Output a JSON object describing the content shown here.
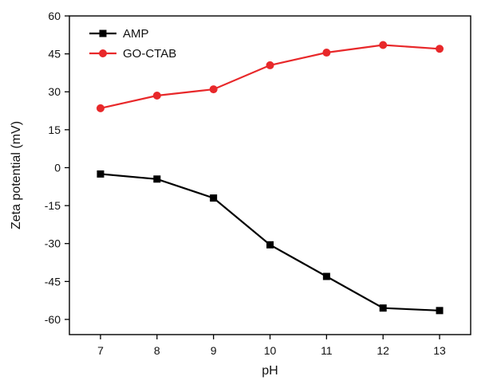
{
  "chart_data": {
    "type": "line",
    "xlabel": "pH",
    "ylabel": "Zeta potential (mV)",
    "x": [
      7,
      8,
      9,
      10,
      11,
      12,
      13
    ],
    "xlim": [
      6.45,
      13.55
    ],
    "ylim": [
      -66,
      60
    ],
    "yticks": [
      60,
      45,
      30,
      15,
      0,
      -15,
      -30,
      -45,
      -60
    ],
    "ytick_labels": [
      "60",
      "45",
      "30",
      "15",
      "0",
      "-15",
      "-30",
      "-45",
      "-60"
    ],
    "xticks": [
      7,
      8,
      9,
      10,
      11,
      12,
      13
    ],
    "xtick_labels": [
      "7",
      "8",
      "9",
      "10",
      "11",
      "12",
      "13"
    ],
    "grid": false,
    "legend_position": "top-left",
    "series": [
      {
        "name": "AMP",
        "color": "#000000",
        "marker": "square",
        "values": [
          -2.5,
          -4.5,
          -12,
          -30.5,
          -43,
          -55.5,
          -56.5
        ]
      },
      {
        "name": "GO-CTAB",
        "color": "#e8282a",
        "marker": "circle",
        "values": [
          23.5,
          28.5,
          31,
          40.5,
          45.5,
          48.5,
          47
        ]
      }
    ]
  }
}
